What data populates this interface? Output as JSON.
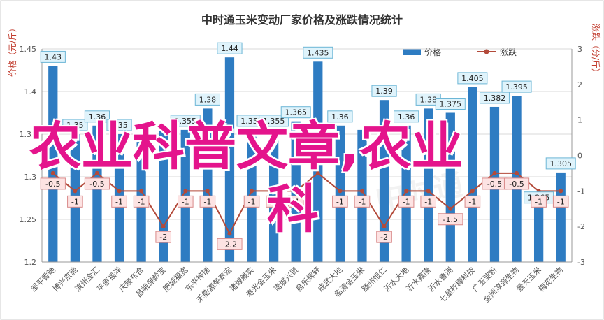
{
  "chart_data": {
    "type": "bar-line",
    "title": "中时通玉米变动厂家价格及涨跌情况统计",
    "y_left_label": "价格（元/斤）",
    "y_right_label": "涨跌（分/斤）",
    "ylim_left": [
      1.2,
      1.45
    ],
    "ylim_right": [
      -3,
      3
    ],
    "left_ticks": [
      "1.2",
      "1.25",
      "1.3",
      "1.35",
      "1.4",
      "1.45"
    ],
    "right_ticks": [
      "-3",
      "-2",
      "-1",
      "0",
      "1",
      "2",
      "3"
    ],
    "legend": {
      "placement": "top-right",
      "bar_label": "价格",
      "line_label": "涨跌"
    },
    "bar_color": "#2e7cc2",
    "line_color": "#b34a3a",
    "categories": [
      "邹平香驰",
      "博兴京驰",
      "滨州金汇",
      "平原福洋",
      "庆陵东合",
      "昌峨保龄宝",
      "肥城福宽",
      "东平梓瑞",
      "禾能源荣泰宏",
      "诸城雅实",
      "寿光金玉米",
      "诸城兴贸",
      "昌乐辉轩",
      "成武大地",
      "临清金玉米",
      "滕州恒仁",
      "沂水大地",
      "沂水鑫隆",
      "沂水鲁洲",
      "七星柠檬科技",
      "广玉淀粉",
      "金洲淳源生物",
      "景天玉米",
      "梅花生物"
    ],
    "prices": [
      1.43,
      1.35,
      1.36,
      1.35,
      1.35,
      1.355,
      1.355,
      1.38,
      1.44,
      1.355,
      1.355,
      1.365,
      1.435,
      1.36,
      1.355,
      1.39,
      1.36,
      1.38,
      1.375,
      1.405,
      1.382,
      1.395,
      1.265,
      1.305
    ],
    "price_labels": [
      "1.43",
      "1.35",
      "1.36",
      "1.35",
      "",
      "",
      "1.355",
      "1.38",
      "1.44",
      "1.355",
      "1.355",
      "1.365",
      "1.435",
      "1.36",
      "",
      "1.39",
      "1.36",
      "1.38",
      "1.375",
      "1.405",
      "1.382",
      "1.395",
      "1.265",
      "1.305"
    ],
    "changes": [
      -0.5,
      -1,
      -0.5,
      -1,
      -1,
      -2,
      -1,
      -1,
      -2.2,
      -1,
      -1,
      -1,
      -0.5,
      -1,
      -1,
      -2,
      -1,
      -1,
      -1.5,
      -1,
      -0.5,
      -0.5,
      -1,
      -1
    ],
    "change_labels": [
      "-0.5",
      "-1",
      "-0.5",
      "-1",
      "-1",
      "-2",
      "-1",
      "-1",
      "-2.2",
      "-1",
      "-1",
      "-1",
      "",
      "-1",
      "-1",
      "-2",
      "-1",
      "-1",
      "-1.5",
      "-1",
      "-0.5",
      "-0.5",
      "-1",
      "-1"
    ]
  },
  "overlay": {
    "line1": "农业科普文章,农业",
    "line2": "科"
  },
  "watermark": "中时通"
}
